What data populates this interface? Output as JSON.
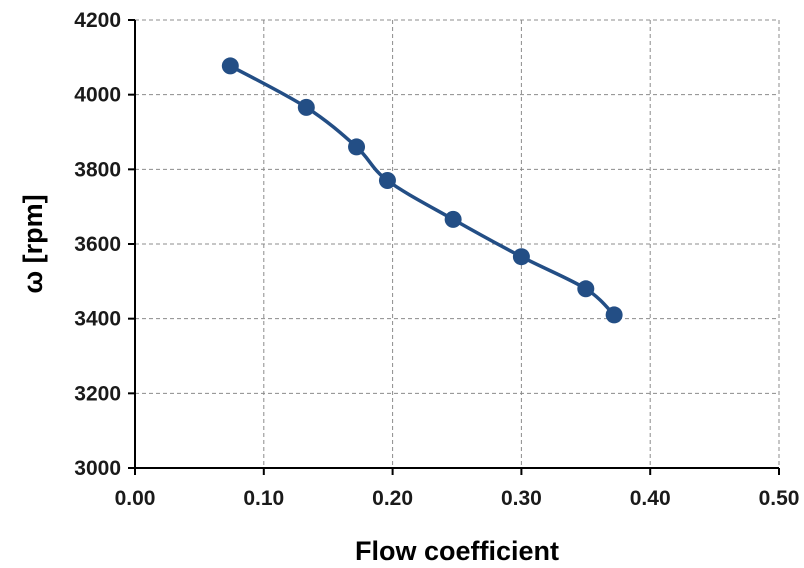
{
  "chart_data": {
    "type": "line",
    "title": "",
    "xlabel": "Flow coefficient",
    "ylabel": "ω [rpm]",
    "xlim": [
      0,
      0.5
    ],
    "ylim": [
      3000,
      4200
    ],
    "grid": true,
    "legend": "none",
    "x_ticks": [
      "0.00",
      "0.10",
      "0.20",
      "0.30",
      "0.40",
      "0.50"
    ],
    "y_ticks": [
      "3000",
      "3200",
      "3400",
      "3600",
      "3800",
      "4000",
      "4200"
    ],
    "series": [
      {
        "color": "#234e85",
        "marker": "circle",
        "points": [
          {
            "x": 0.074,
            "y": 4077
          },
          {
            "x": 0.133,
            "y": 3966
          },
          {
            "x": 0.172,
            "y": 3860
          },
          {
            "x": 0.196,
            "y": 3770
          },
          {
            "x": 0.247,
            "y": 3666
          },
          {
            "x": 0.3,
            "y": 3566
          },
          {
            "x": 0.35,
            "y": 3480
          },
          {
            "x": 0.372,
            "y": 3410
          }
        ]
      }
    ]
  }
}
